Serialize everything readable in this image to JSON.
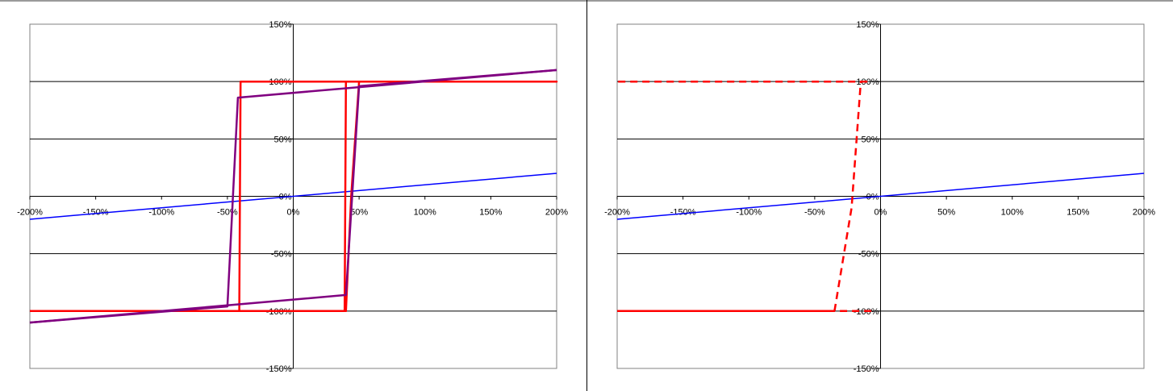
{
  "chart_data": [
    {
      "type": "line",
      "title": "",
      "xlabel": "",
      "ylabel": "",
      "xlim": [
        -200,
        200
      ],
      "ylim": [
        -150,
        150
      ],
      "x_ticks": [
        "-200%",
        "-150%",
        "-100%",
        "-50%",
        "0%",
        "50%",
        "100%",
        "150%",
        "200%"
      ],
      "y_ticks": [
        "150%",
        "100%",
        "50%",
        "0%",
        "-50%",
        "-100%",
        "-150%"
      ],
      "grid": "horizontal",
      "legend": "none",
      "series": [
        {
          "color": "#0000ff",
          "width": 1.5,
          "dash": "",
          "x": [
            -200,
            200
          ],
          "y": [
            -20,
            20
          ]
        },
        {
          "color": "#ff0000",
          "width": 2.5,
          "dash": "",
          "x": [
            -200,
            -40,
            -41,
            -40,
            200,
            200,
            40,
            39,
            40,
            -200
          ],
          "y": [
            -100,
            -100,
            -100,
            100,
            100,
            100,
            100,
            -100,
            -100,
            -100
          ]
        },
        {
          "color": "#ff0000",
          "width": 2.5,
          "dash": "",
          "x": [
            -200,
            40,
            44,
            50,
            200
          ],
          "y": [
            -100,
            -100,
            0,
            100,
            100
          ]
        },
        {
          "color": "#800080",
          "width": 2.5,
          "dash": "",
          "x": [
            -200,
            40,
            50,
            200
          ],
          "y": [
            -110,
            -86,
            96,
            110
          ]
        },
        {
          "color": "#800080",
          "width": 2.5,
          "dash": "",
          "x": [
            200,
            -42,
            -50,
            -200
          ],
          "y": [
            110,
            86,
            -96,
            -110
          ]
        }
      ]
    },
    {
      "type": "line",
      "title": "",
      "xlabel": "",
      "ylabel": "",
      "xlim": [
        -200,
        200
      ],
      "ylim": [
        -150,
        150
      ],
      "x_ticks": [
        "-200%",
        "-150%",
        "-100%",
        "-50%",
        "0%",
        "50%",
        "100%",
        "150%",
        "200%"
      ],
      "y_ticks": [
        "150%",
        "100%",
        "50%",
        "0%",
        "-50%",
        "-100%",
        "-150%"
      ],
      "grid": "horizontal",
      "legend": "none",
      "series": [
        {
          "color": "#0000ff",
          "width": 1.5,
          "dash": "",
          "x": [
            -200,
            200
          ],
          "y": [
            -20,
            20
          ]
        },
        {
          "color": "#ff0000",
          "width": 2.5,
          "dash": "9,6",
          "x": [
            -200,
            -40,
            -40,
            -40
          ],
          "y": [
            -100,
            -100,
            -100,
            -100
          ]
        },
        {
          "color": "#ff0000",
          "width": 2.5,
          "dash": "9,6",
          "x": [
            -35,
            -22,
            -15,
            -10
          ],
          "y": [
            -100,
            -10,
            100,
            100
          ]
        },
        {
          "color": "#ff0000",
          "width": 2.5,
          "dash": "9,6",
          "x": [
            -10,
            -15,
            -200,
            -200
          ],
          "y": [
            100,
            100,
            100,
            100
          ]
        },
        {
          "color": "#ff0000",
          "width": 2.5,
          "dash": "9,6",
          "x": [
            -7,
            -10,
            -15,
            -30,
            -45,
            -49,
            -55,
            -60,
            -150,
            -200
          ],
          "y": [
            -100,
            -100,
            -100,
            -100,
            -100,
            -100,
            -100,
            -100,
            -100,
            -100
          ]
        },
        {
          "color": "#ff0000",
          "width": 2.5,
          "dash": "9,6",
          "x": [
            -50,
            -50,
            -45,
            -50,
            -40
          ],
          "y": [
            -100,
            -100,
            -100,
            -100,
            -100
          ]
        },
        {
          "color": "#ff0000",
          "width": 2.5,
          "dash": "9,6",
          "x": [
            -80,
            -80,
            -50,
            -49,
            -40
          ],
          "y": [
            -100,
            -100,
            -100,
            -100,
            -100
          ]
        },
        {
          "color": "#ff0000",
          "width": 2.5,
          "dash": "9,6",
          "x": [
            -50,
            -50,
            -50
          ],
          "y": [
            -100,
            -100,
            -100
          ]
        }
      ]
    }
  ]
}
